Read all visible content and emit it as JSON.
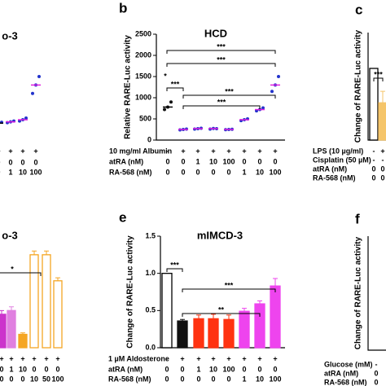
{
  "panel_letters": [
    "b",
    "c",
    "e",
    "f"
  ],
  "chart_data": [
    {
      "type": "dot",
      "title": "o-3",
      "ylim": [
        0,
        2500
      ],
      "values": [
        400,
        430,
        480,
        1300
      ],
      "points": [
        [
          380,
          400,
          420
        ],
        [
          410,
          430,
          450
        ],
        [
          450,
          480,
          520
        ],
        [
          1100,
          1300,
          1500
        ]
      ],
      "color": "#2233cc",
      "mean_color": "#e020e0",
      "conditions": [
        {
          "values": [
            "+",
            "+",
            "+",
            "+"
          ]
        },
        {
          "values": [
            "0",
            "0",
            "0",
            "0"
          ]
        },
        {
          "values": [
            "0",
            "1",
            "10",
            "100"
          ]
        }
      ]
    },
    {
      "type": "dot",
      "title": "HCD",
      "y_label": "Relative RARE-Luc activity",
      "ylim": [
        0,
        2500
      ],
      "yticks": [
        0,
        500,
        1000,
        1500,
        2000,
        2500
      ],
      "values": [
        780,
        250,
        270,
        270,
        250,
        480,
        720,
        1300
      ],
      "points": [
        [
          720,
          780,
          900
        ],
        [
          240,
          250,
          260
        ],
        [
          260,
          270,
          280
        ],
        [
          260,
          275,
          270
        ],
        [
          245,
          250,
          255
        ],
        [
          460,
          480,
          500
        ],
        [
          690,
          720,
          760
        ],
        [
          1150,
          1300,
          1500
        ]
      ],
      "color": "#2233cc",
      "first_color": "#111111",
      "mean_color": "#e020e0",
      "conditions": [
        {
          "name": "10 mg/ml Albumin",
          "values": [
            "-",
            "+",
            "+",
            "+",
            "+",
            "+",
            "+",
            "+"
          ]
        },
        {
          "name": "atRA (nM)",
          "values": [
            "0",
            "0",
            "1",
            "10",
            "100",
            "0",
            "0",
            "0"
          ]
        },
        {
          "name": "RA-568 (nM)",
          "values": [
            "0",
            "0",
            "0",
            "0",
            "0",
            "1",
            "10",
            "100"
          ]
        }
      ],
      "annotations": [
        "*",
        "***",
        "***",
        "***",
        "***",
        "***"
      ]
    },
    {
      "type": "bar",
      "y_label": "Change of RARE-Luc activity",
      "ylim": [
        0,
        1.5
      ],
      "values": [
        1.0,
        0.52
      ],
      "errors": [
        0,
        0.16
      ],
      "colors": [
        "#ffffff",
        "#f5c56a"
      ],
      "conditions": [
        {
          "name": "LPS (10 µg/ml)",
          "values": [
            "-",
            "+"
          ]
        },
        {
          "name": "Cisplatin (50 µM)",
          "values": [
            "-",
            "-"
          ]
        },
        {
          "name": "atRA (nM)",
          "values": [
            "0",
            "0"
          ]
        },
        {
          "name": "RA-568 (nM)",
          "values": [
            "0",
            "0"
          ]
        }
      ],
      "annotations": [
        "***"
      ]
    },
    {
      "type": "bar",
      "title": "o-3",
      "ylim": [
        0,
        1.5
      ],
      "values": [
        0.45,
        0.5,
        0.18,
        1.25,
        1.25,
        0.9
      ],
      "errors": [
        0.05,
        0.05,
        0.02,
        0.05,
        0.05,
        0.04
      ],
      "colors": [
        "#cc33cc",
        "#e080e0",
        "#f5a623",
        "#ffffff",
        "#ffffff",
        "#ffffff"
      ],
      "stroke": "#f5a623",
      "conditions": [
        {
          "values": [
            "+",
            "+",
            "+",
            "+",
            "+",
            "+"
          ]
        },
        {
          "values": [
            "0",
            "1",
            "10",
            "0",
            "0",
            "0"
          ]
        },
        {
          "values": [
            "0",
            "0",
            "0",
            "10",
            "50",
            "100"
          ]
        }
      ],
      "annotations": [
        "*"
      ]
    },
    {
      "type": "bar",
      "title": "mIMCD-3",
      "y_label": "Change of RARE-Luc activity",
      "ylim": [
        0,
        1.5
      ],
      "yticks": [
        {
          "value": 0,
          "label": "0.0"
        },
        {
          "value": 0.5,
          "label": "0.5"
        },
        {
          "value": 1,
          "label": "1.0"
        },
        {
          "value": 1.5,
          "label": "1.5"
        }
      ],
      "values": [
        1.0,
        0.36,
        0.39,
        0.39,
        0.38,
        0.49,
        0.59,
        0.83
      ],
      "errors": [
        0,
        0.02,
        0.05,
        0.06,
        0.06,
        0.04,
        0.04,
        0.1
      ],
      "colors": [
        "#ffffff",
        "#111111",
        "#ff3311",
        "#ff3311",
        "#ff3311",
        "#ee44ee",
        "#ee44ee",
        "#ee44ee"
      ],
      "conditions": [
        {
          "name": "1 µM Aldosterone",
          "values": [
            "-",
            "+",
            "+",
            "+",
            "+",
            "+",
            "+",
            "+"
          ]
        },
        {
          "name": "atRA (nM)",
          "values": [
            "0",
            "0",
            "1",
            "10",
            "100",
            "0",
            "0",
            "0"
          ]
        },
        {
          "name": "RA-568 (nM)",
          "values": [
            "0",
            "0",
            "0",
            "0",
            "0",
            "1",
            "10",
            "100"
          ]
        }
      ],
      "annotations": [
        "***",
        "***",
        "**"
      ]
    },
    {
      "type": "bar",
      "y_label": "Change of RARE-Luc activity",
      "ylim": [
        0,
        1.5
      ],
      "conditions": [
        {
          "name": "Glucose (mM)",
          "values": [
            "-"
          ]
        },
        {
          "name": "atRA (nM)",
          "values": [
            "0"
          ]
        },
        {
          "name": "RA-568 (nM)",
          "values": [
            "0"
          ]
        }
      ]
    }
  ]
}
